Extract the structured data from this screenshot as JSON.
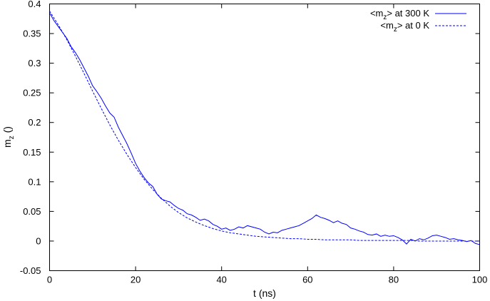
{
  "chart_data": {
    "type": "line",
    "xlabel": "t (ns)",
    "ylabel_main": "m",
    "ylabel_sub": "z",
    "ylabel_suffix": " ()",
    "xlim": [
      0,
      100
    ],
    "ylim": [
      -0.05,
      0.4
    ],
    "xticks": [
      0,
      20,
      40,
      60,
      80,
      100
    ],
    "yticks": [
      -0.05,
      0,
      0.05,
      0.1,
      0.15,
      0.2,
      0.25,
      0.3,
      0.35,
      0.4
    ],
    "xtick_labels": [
      "0",
      "20",
      "40",
      "60",
      "80",
      "100"
    ],
    "ytick_labels": [
      "-0.05",
      "0",
      "0.05",
      "0.1",
      "0.15",
      "0.2",
      "0.25",
      "0.3",
      "0.35",
      "0.4"
    ],
    "grid": false,
    "legend_position": "top-right",
    "series": [
      {
        "legend_pre": "<m",
        "legend_sub": "z",
        "legend_post": "> at 300 K",
        "style": "solid",
        "color": "#0000ff",
        "x": [
          0,
          1,
          2,
          3,
          4,
          5,
          6,
          7,
          8,
          9,
          10,
          11,
          12,
          13,
          14,
          15,
          16,
          17,
          18,
          19,
          20,
          21,
          22,
          23,
          24,
          25,
          26,
          27,
          28,
          29,
          30,
          31,
          32,
          33,
          34,
          35,
          36,
          37,
          38,
          39,
          40,
          41,
          42,
          43,
          44,
          45,
          46,
          47,
          48,
          49,
          50,
          51,
          52,
          53,
          54,
          55,
          56,
          57,
          58,
          59,
          60,
          61,
          62,
          63,
          64,
          65,
          66,
          67,
          68,
          69,
          70,
          71,
          72,
          73,
          74,
          75,
          76,
          77,
          78,
          79,
          80,
          81,
          82,
          83,
          84,
          85,
          86,
          87,
          88,
          89,
          90,
          91,
          92,
          93,
          94,
          95,
          96,
          97,
          98,
          99,
          100
        ],
        "y": [
          0.385,
          0.372,
          0.362,
          0.352,
          0.342,
          0.328,
          0.318,
          0.306,
          0.292,
          0.278,
          0.262,
          0.252,
          0.241,
          0.228,
          0.216,
          0.209,
          0.192,
          0.178,
          0.164,
          0.148,
          0.131,
          0.118,
          0.107,
          0.098,
          0.092,
          0.079,
          0.071,
          0.068,
          0.066,
          0.06,
          0.055,
          0.052,
          0.046,
          0.044,
          0.04,
          0.035,
          0.037,
          0.034,
          0.028,
          0.025,
          0.02,
          0.022,
          0.018,
          0.02,
          0.024,
          0.022,
          0.026,
          0.024,
          0.022,
          0.02,
          0.015,
          0.012,
          0.015,
          0.014,
          0.018,
          0.02,
          0.022,
          0.024,
          0.026,
          0.03,
          0.034,
          0.038,
          0.044,
          0.04,
          0.038,
          0.035,
          0.031,
          0.034,
          0.03,
          0.028,
          0.022,
          0.02,
          0.017,
          0.015,
          0.011,
          0.01,
          0.012,
          0.008,
          0.01,
          0.008,
          0.009,
          0.006,
          0.002,
          -0.005,
          0.003,
          0.0,
          0.004,
          0.002,
          0.005,
          0.009,
          0.01,
          0.008,
          0.006,
          0.003,
          0.004,
          0.002,
          0.001,
          -0.001,
          0.001,
          -0.004,
          -0.006
        ]
      },
      {
        "legend_pre": "<m",
        "legend_sub": "z",
        "legend_post": "> at 0 K",
        "style": "dashed",
        "color": "#0000ff",
        "x": [
          0,
          2,
          4,
          6,
          8,
          10,
          12,
          14,
          16,
          18,
          20,
          22,
          24,
          26,
          28,
          30,
          32,
          34,
          36,
          38,
          40,
          42,
          44,
          46,
          48,
          50,
          52,
          54,
          56,
          58,
          60,
          62,
          64,
          66,
          68,
          70,
          72,
          74,
          76,
          78,
          80,
          82,
          84,
          86,
          88,
          90,
          92,
          94,
          96,
          98,
          100
        ],
        "y": [
          0.388,
          0.365,
          0.34,
          0.312,
          0.283,
          0.253,
          0.224,
          0.196,
          0.17,
          0.146,
          0.124,
          0.104,
          0.087,
          0.072,
          0.059,
          0.048,
          0.039,
          0.032,
          0.026,
          0.021,
          0.017,
          0.014,
          0.012,
          0.01,
          0.008,
          0.007,
          0.006,
          0.005,
          0.004,
          0.004,
          0.003,
          0.003,
          0.002,
          0.002,
          0.002,
          0.002,
          0.001,
          0.001,
          0.001,
          0.001,
          0.001,
          0.001,
          0.001,
          0.0,
          0.0,
          0.0,
          0.0,
          0.0,
          0.0,
          0.0,
          0.0
        ]
      }
    ]
  }
}
